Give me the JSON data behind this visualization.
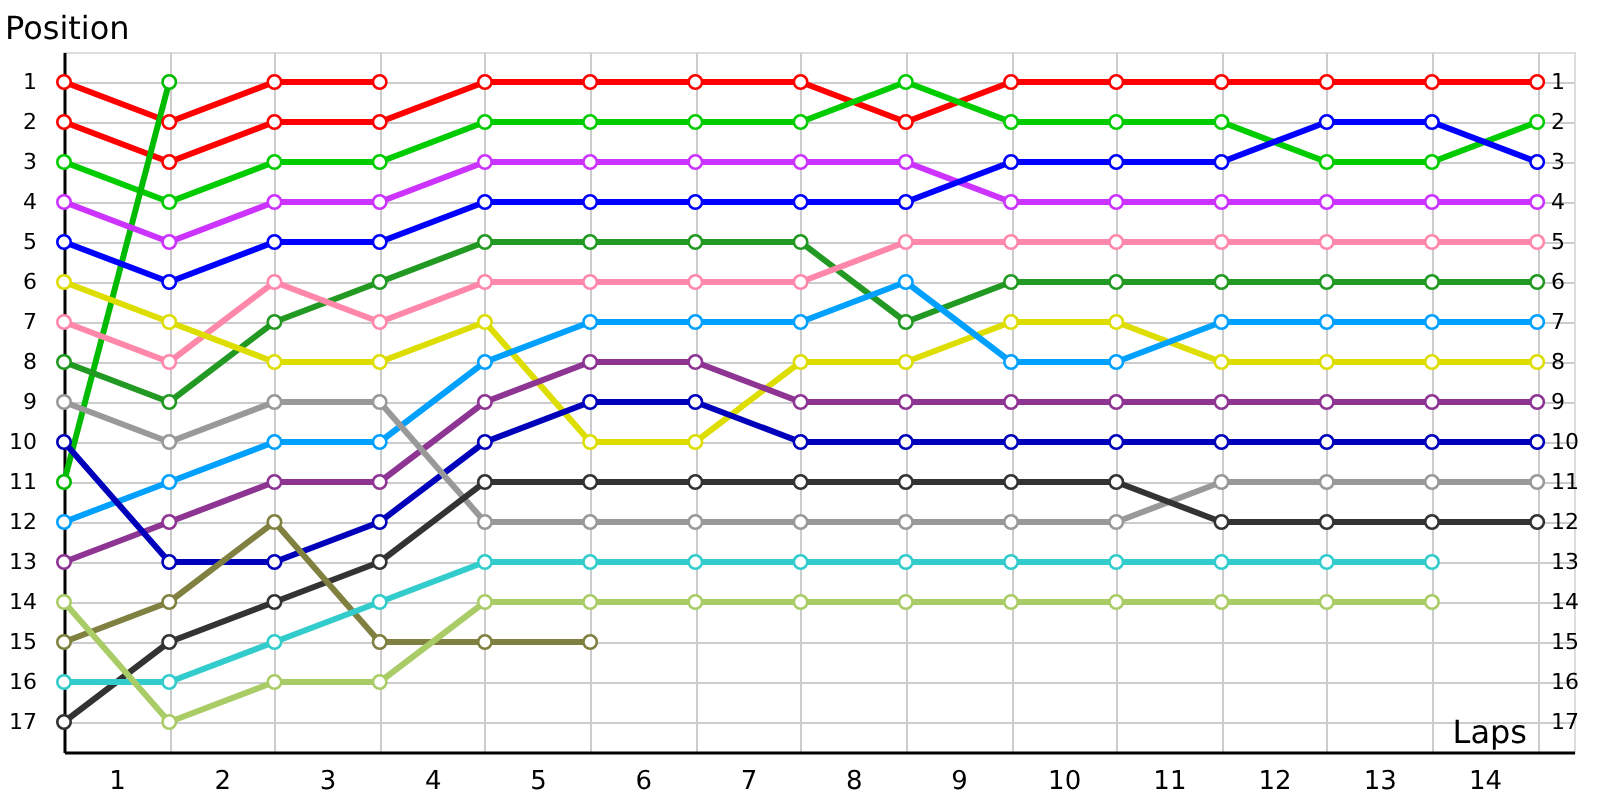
{
  "chart_data": {
    "type": "line",
    "xlabel": "Laps",
    "ylabel": "Position",
    "x": [
      0,
      1,
      2,
      3,
      4,
      5,
      6,
      7,
      8,
      9,
      10,
      11,
      12,
      13,
      14
    ],
    "xlim": [
      0,
      14.35
    ],
    "xticks": [
      {
        "value": 0.5,
        "label": "1"
      },
      {
        "value": 1.5,
        "label": "2"
      },
      {
        "value": 2.5,
        "label": "3"
      },
      {
        "value": 3.5,
        "label": "4"
      },
      {
        "value": 4.5,
        "label": "5"
      },
      {
        "value": 5.5,
        "label": "6"
      },
      {
        "value": 6.5,
        "label": "7"
      },
      {
        "value": 7.5,
        "label": "8"
      },
      {
        "value": 8.5,
        "label": "9"
      },
      {
        "value": 9.5,
        "label": "10"
      },
      {
        "value": 10.5,
        "label": "11"
      },
      {
        "value": 11.5,
        "label": "12"
      },
      {
        "value": 12.5,
        "label": "13"
      },
      {
        "value": 13.5,
        "label": "14"
      },
      {
        "value": 1,
        "label": null
      },
      {
        "value": 2,
        "label": null
      },
      {
        "value": 3,
        "label": null
      },
      {
        "value": 4,
        "label": null
      },
      {
        "value": 5,
        "label": null
      },
      {
        "value": 6,
        "label": null
      },
      {
        "value": 7,
        "label": null
      },
      {
        "value": 8,
        "label": null
      },
      {
        "value": 9,
        "label": null
      },
      {
        "value": 10,
        "label": null
      },
      {
        "value": 11,
        "label": null
      },
      {
        "value": 12,
        "label": null
      },
      {
        "value": 13,
        "label": null
      },
      {
        "value": 14,
        "label": null
      }
    ],
    "ylim": [
      17.75,
      0.25
    ],
    "yticks": [
      1,
      2,
      3,
      4,
      5,
      6,
      7,
      8,
      9,
      10,
      11,
      12,
      13,
      14,
      15,
      16,
      17
    ],
    "y2lim": [
      17.75,
      0.25
    ],
    "y2ticks": [
      1,
      2,
      3,
      4,
      5,
      6,
      7,
      8,
      9,
      10,
      11,
      12,
      13,
      14,
      15,
      16,
      17
    ],
    "grid": true,
    "marker": "circle",
    "line_style": "solid",
    "series": [
      {
        "color": "#ff0000",
        "values": [
          1,
          2,
          1,
          1,
          null,
          null,
          null,
          null,
          null,
          null,
          null,
          null,
          null,
          null,
          null
        ]
      },
      {
        "color": "#ff0000",
        "values": [
          2,
          3,
          2,
          2,
          1,
          1,
          1,
          1,
          2,
          1,
          1,
          1,
          1,
          1,
          1
        ]
      },
      {
        "color": "#00cc00",
        "values": [
          3,
          4,
          3,
          3,
          2,
          2,
          2,
          2,
          1,
          2,
          2,
          2,
          3,
          3,
          2
        ]
      },
      {
        "color": "#00bb00",
        "values": [
          11,
          1,
          null,
          null,
          null,
          null,
          null,
          null,
          null,
          null,
          null,
          null,
          null,
          null,
          null
        ]
      },
      {
        "color": "#cc33ff",
        "values": [
          4,
          5,
          4,
          4,
          3,
          3,
          3,
          3,
          3,
          4,
          4,
          4,
          4,
          4,
          4
        ]
      },
      {
        "color": "#0000ff",
        "values": [
          5,
          6,
          5,
          5,
          4,
          4,
          4,
          4,
          4,
          3,
          3,
          3,
          2,
          2,
          3
        ]
      },
      {
        "color": "#229922",
        "values": [
          8,
          9,
          7,
          6,
          5,
          5,
          5,
          5,
          7,
          6,
          6,
          6,
          6,
          6,
          6
        ]
      },
      {
        "color": "#ff88aa",
        "values": [
          7,
          8,
          6,
          7,
          6,
          6,
          6,
          6,
          5,
          5,
          5,
          5,
          5,
          5,
          5
        ]
      },
      {
        "color": "#dddd00",
        "values": [
          6,
          7,
          8,
          8,
          7,
          10,
          10,
          8,
          8,
          7,
          7,
          8,
          8,
          8,
          8
        ]
      },
      {
        "color": "#00a0ff",
        "values": [
          12,
          11,
          10,
          10,
          8,
          7,
          7,
          7,
          6,
          8,
          8,
          7,
          7,
          7,
          7
        ]
      },
      {
        "color": "#8e3594",
        "values": [
          13,
          12,
          11,
          11,
          9,
          8,
          8,
          9,
          9,
          9,
          9,
          9,
          9,
          9,
          9
        ]
      },
      {
        "color": "#0000bb",
        "values": [
          10,
          13,
          13,
          12,
          10,
          9,
          9,
          10,
          10,
          10,
          10,
          10,
          10,
          10,
          10
        ]
      },
      {
        "color": "#999999",
        "values": [
          9,
          10,
          9,
          9,
          12,
          12,
          12,
          12,
          12,
          12,
          12,
          11,
          11,
          11,
          11
        ]
      },
      {
        "color": "#333333",
        "values": [
          17,
          15,
          14,
          13,
          11,
          11,
          11,
          11,
          11,
          11,
          11,
          12,
          12,
          12,
          12
        ]
      },
      {
        "color": "#808040",
        "values": [
          15,
          14,
          12,
          15,
          15,
          15,
          null,
          null,
          null,
          null,
          null,
          null,
          null,
          null,
          null
        ]
      },
      {
        "color": "#33cccc",
        "values": [
          16,
          16,
          15,
          14,
          13,
          13,
          13,
          13,
          13,
          13,
          13,
          13,
          13,
          13,
          null
        ]
      },
      {
        "color": "#aacc66",
        "values": [
          14,
          17,
          16,
          16,
          14,
          14,
          14,
          14,
          14,
          14,
          14,
          14,
          14,
          14,
          null
        ]
      }
    ]
  }
}
